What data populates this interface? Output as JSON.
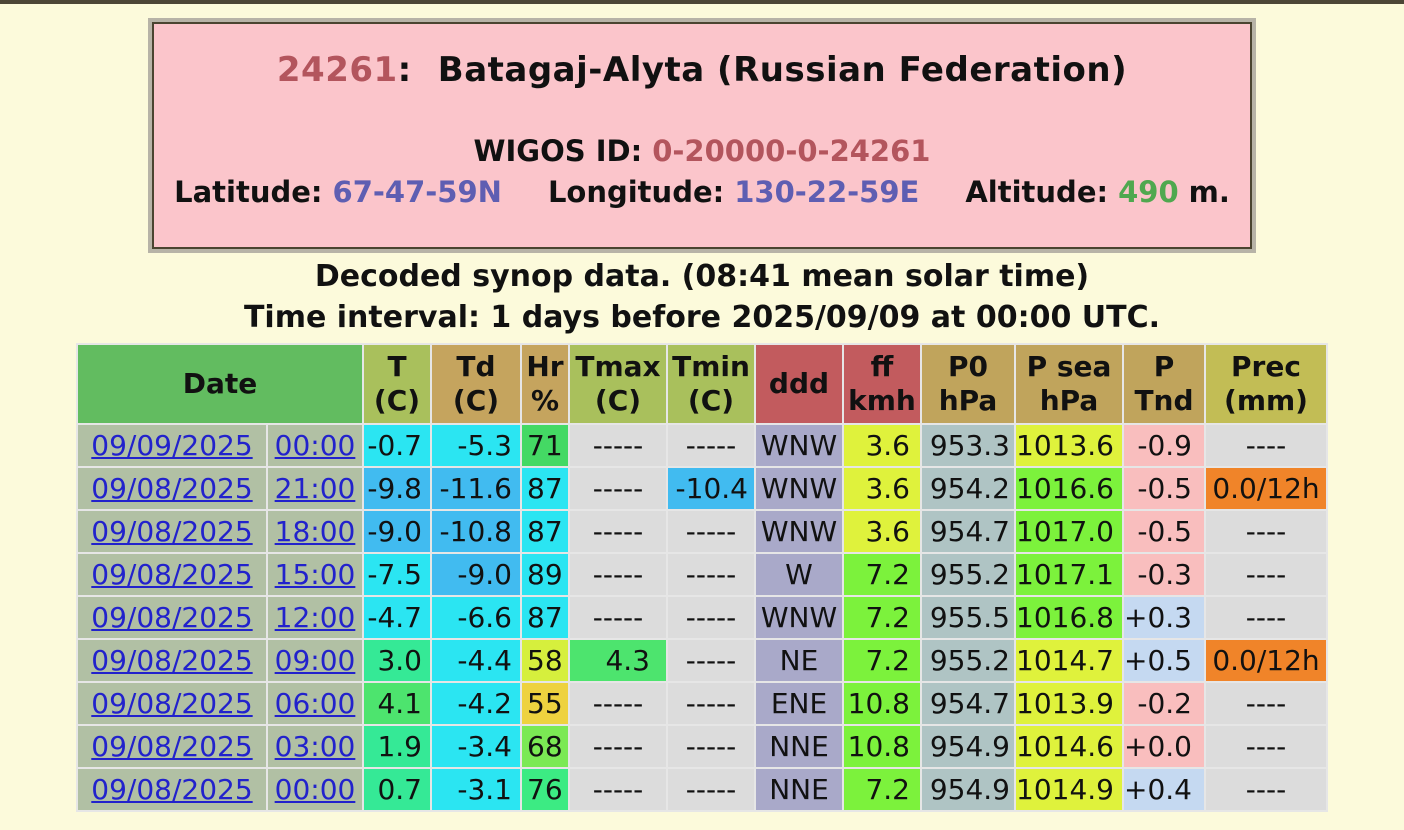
{
  "station": {
    "id": "24261",
    "id_suffix": ":",
    "name": "Batagaj-Alyta (Russian Federation)",
    "wigos_label": "WIGOS ID:",
    "wigos_id": "0-20000-0-24261",
    "latitude_label": "Latitude:",
    "latitude": "67-47-59N",
    "longitude_label": "Longitude:",
    "longitude": "130-22-59E",
    "altitude_label": "Altitude:",
    "altitude": "490",
    "altitude_unit": "m."
  },
  "subtitle": {
    "line1": "Decoded synop data. (08:41 mean solar time)",
    "line2": "Time interval: 1 days before 2025/09/09 at 00:00 UTC."
  },
  "colors": {
    "page_bg": "#FCFADB",
    "top_edge": "#4C4636",
    "station_box_bg": "#FBC5CB",
    "link_blue": "#2222CC",
    "date_cell_bg": "#B1C0A4"
  },
  "table": {
    "headers": [
      {
        "id": "date",
        "line1": "Date",
        "line2": "",
        "bg": "#62BC60",
        "colspan": 2
      },
      {
        "id": "t",
        "line1": "T",
        "line2": "(C)",
        "bg": "#A9C05C"
      },
      {
        "id": "td",
        "line1": "Td",
        "line2": "(C)",
        "bg": "#C5A45E"
      },
      {
        "id": "hr",
        "line1": "Hr",
        "line2": "%",
        "bg": "#C5A45E"
      },
      {
        "id": "tmax",
        "line1": "Tmax",
        "line2": "(C)",
        "bg": "#A9C05C"
      },
      {
        "id": "tmin",
        "line1": "Tmin",
        "line2": "(C)",
        "bg": "#A9C05C"
      },
      {
        "id": "ddd",
        "line1": "ddd",
        "line2": "",
        "bg": "#C25B5E"
      },
      {
        "id": "ff",
        "line1": "ff",
        "line2": "kmh",
        "bg": "#C25B5E"
      },
      {
        "id": "p0",
        "line1": "P0",
        "line2": "hPa",
        "bg": "#C0A45C"
      },
      {
        "id": "psea",
        "line1": "P sea",
        "line2": "hPa",
        "bg": "#C0A45C"
      },
      {
        "id": "ptnd",
        "line1": "P",
        "line2": "Tnd",
        "bg": "#C0A45C"
      },
      {
        "id": "prec",
        "line1": "Prec",
        "line2": "(mm)",
        "bg": "#C2BD55"
      }
    ],
    "columns": [
      {
        "key": "date",
        "link": true
      },
      {
        "key": "time",
        "link": true
      },
      {
        "key": "t"
      },
      {
        "key": "td"
      },
      {
        "key": "hr"
      },
      {
        "key": "tmax"
      },
      {
        "key": "tmin"
      },
      {
        "key": "ddd"
      },
      {
        "key": "ff"
      },
      {
        "key": "p0"
      },
      {
        "key": "psea"
      },
      {
        "key": "ptnd"
      },
      {
        "key": "prec"
      }
    ],
    "rows": [
      {
        "cells": [
          {
            "t": "09/09/2025",
            "bg": "#B1C0A4"
          },
          {
            "t": "00:00",
            "bg": "#B1C0A4"
          },
          {
            "t": "-0.7",
            "bg": "#2BE5F2"
          },
          {
            "t": "-5.3",
            "bg": "#2BE5F2"
          },
          {
            "t": "71",
            "bg": "#44D964"
          },
          {
            "t": "-----",
            "bg": "#DCDCDC",
            "dash": true
          },
          {
            "t": "-----",
            "bg": "#DCDCDC",
            "dash": true
          },
          {
            "t": "WNW",
            "bg": "#A9A9C9"
          },
          {
            "t": "3.6",
            "bg": "#DFF23C"
          },
          {
            "t": "953.3",
            "bg": "#AFC4C4"
          },
          {
            "t": "1013.6",
            "bg": "#DFF23C"
          },
          {
            "t": "-0.9",
            "bg": "#F9BEBE"
          },
          {
            "t": "----",
            "bg": "#DCDCDC",
            "dash": true
          }
        ]
      },
      {
        "cells": [
          {
            "t": "09/08/2025",
            "bg": "#B1C0A4"
          },
          {
            "t": "21:00",
            "bg": "#B1C0A4"
          },
          {
            "t": "-9.8",
            "bg": "#41BBF0"
          },
          {
            "t": "-11.6",
            "bg": "#41BBF0"
          },
          {
            "t": "87",
            "bg": "#2BE5F2"
          },
          {
            "t": "-----",
            "bg": "#DCDCDC",
            "dash": true
          },
          {
            "t": "-10.4",
            "bg": "#41BBF0"
          },
          {
            "t": "WNW",
            "bg": "#A9A9C9"
          },
          {
            "t": "3.6",
            "bg": "#DFF23C"
          },
          {
            "t": "954.2",
            "bg": "#AFC4C4"
          },
          {
            "t": "1016.6",
            "bg": "#7CF23C"
          },
          {
            "t": "-0.5",
            "bg": "#F9BEBE"
          },
          {
            "t": "0.0/12h",
            "bg": "#F08429"
          }
        ]
      },
      {
        "cells": [
          {
            "t": "09/08/2025",
            "bg": "#B1C0A4"
          },
          {
            "t": "18:00",
            "bg": "#B1C0A4"
          },
          {
            "t": "-9.0",
            "bg": "#41BBF0"
          },
          {
            "t": "-10.8",
            "bg": "#41BBF0"
          },
          {
            "t": "87",
            "bg": "#2BE5F2"
          },
          {
            "t": "-----",
            "bg": "#DCDCDC",
            "dash": true
          },
          {
            "t": "-----",
            "bg": "#DCDCDC",
            "dash": true
          },
          {
            "t": "WNW",
            "bg": "#A9A9C9"
          },
          {
            "t": "3.6",
            "bg": "#DFF23C"
          },
          {
            "t": "954.7",
            "bg": "#AFC4C4"
          },
          {
            "t": "1017.0",
            "bg": "#7CF23C"
          },
          {
            "t": "-0.5",
            "bg": "#F9BEBE"
          },
          {
            "t": "----",
            "bg": "#DCDCDC",
            "dash": true
          }
        ]
      },
      {
        "cells": [
          {
            "t": "09/08/2025",
            "bg": "#B1C0A4"
          },
          {
            "t": "15:00",
            "bg": "#B1C0A4"
          },
          {
            "t": "-7.5",
            "bg": "#2BE5F2"
          },
          {
            "t": "-9.0",
            "bg": "#41BBF0"
          },
          {
            "t": "89",
            "bg": "#2BE5F2"
          },
          {
            "t": "-----",
            "bg": "#DCDCDC",
            "dash": true
          },
          {
            "t": "-----",
            "bg": "#DCDCDC",
            "dash": true
          },
          {
            "t": "W",
            "bg": "#A9A9C9"
          },
          {
            "t": "7.2",
            "bg": "#7CF23C"
          },
          {
            "t": "955.2",
            "bg": "#AFC4C4"
          },
          {
            "t": "1017.1",
            "bg": "#7CF23C"
          },
          {
            "t": "-0.3",
            "bg": "#F9BEBE"
          },
          {
            "t": "----",
            "bg": "#DCDCDC",
            "dash": true
          }
        ]
      },
      {
        "cells": [
          {
            "t": "09/08/2025",
            "bg": "#B1C0A4"
          },
          {
            "t": "12:00",
            "bg": "#B1C0A4"
          },
          {
            "t": "-4.7",
            "bg": "#2BE5F2"
          },
          {
            "t": "-6.6",
            "bg": "#2BE5F2"
          },
          {
            "t": "87",
            "bg": "#2BE5F2"
          },
          {
            "t": "-----",
            "bg": "#DCDCDC",
            "dash": true
          },
          {
            "t": "-----",
            "bg": "#DCDCDC",
            "dash": true
          },
          {
            "t": "WNW",
            "bg": "#A9A9C9"
          },
          {
            "t": "7.2",
            "bg": "#7CF23C"
          },
          {
            "t": "955.5",
            "bg": "#AFC4C4"
          },
          {
            "t": "1016.8",
            "bg": "#7CF23C"
          },
          {
            "t": "+0.3",
            "bg": "#C5D9F1"
          },
          {
            "t": "----",
            "bg": "#DCDCDC",
            "dash": true
          }
        ]
      },
      {
        "cells": [
          {
            "t": "09/08/2025",
            "bg": "#B1C0A4"
          },
          {
            "t": "09:00",
            "bg": "#B1C0A4"
          },
          {
            "t": "3.0",
            "bg": "#35E996"
          },
          {
            "t": "-4.4",
            "bg": "#2BE5F2"
          },
          {
            "t": "58",
            "bg": "#D6EF3D"
          },
          {
            "t": "4.3",
            "bg": "#4DE46E"
          },
          {
            "t": "-----",
            "bg": "#DCDCDC",
            "dash": true
          },
          {
            "t": "NE",
            "bg": "#A9A9C9"
          },
          {
            "t": "7.2",
            "bg": "#7CF23C"
          },
          {
            "t": "955.2",
            "bg": "#AFC4C4"
          },
          {
            "t": "1014.7",
            "bg": "#DFF23C"
          },
          {
            "t": "+0.5",
            "bg": "#C5D9F1"
          },
          {
            "t": "0.0/12h",
            "bg": "#F08429"
          }
        ]
      },
      {
        "cells": [
          {
            "t": "09/08/2025",
            "bg": "#B1C0A4"
          },
          {
            "t": "06:00",
            "bg": "#B1C0A4"
          },
          {
            "t": "4.1",
            "bg": "#4DE46E"
          },
          {
            "t": "-4.2",
            "bg": "#2BE5F2"
          },
          {
            "t": "55",
            "bg": "#EED23F"
          },
          {
            "t": "-----",
            "bg": "#DCDCDC",
            "dash": true
          },
          {
            "t": "-----",
            "bg": "#DCDCDC",
            "dash": true
          },
          {
            "t": "ENE",
            "bg": "#A9A9C9"
          },
          {
            "t": "10.8",
            "bg": "#7CF23C"
          },
          {
            "t": "954.7",
            "bg": "#AFC4C4"
          },
          {
            "t": "1013.9",
            "bg": "#DFF23C"
          },
          {
            "t": "-0.2",
            "bg": "#F9BEBE"
          },
          {
            "t": "----",
            "bg": "#DCDCDC",
            "dash": true
          }
        ]
      },
      {
        "cells": [
          {
            "t": "09/08/2025",
            "bg": "#B1C0A4"
          },
          {
            "t": "03:00",
            "bg": "#B1C0A4"
          },
          {
            "t": "1.9",
            "bg": "#35E996"
          },
          {
            "t": "-3.4",
            "bg": "#2BE5F2"
          },
          {
            "t": "68",
            "bg": "#7BE954"
          },
          {
            "t": "-----",
            "bg": "#DCDCDC",
            "dash": true
          },
          {
            "t": "-----",
            "bg": "#DCDCDC",
            "dash": true
          },
          {
            "t": "NNE",
            "bg": "#A9A9C9"
          },
          {
            "t": "10.8",
            "bg": "#7CF23C"
          },
          {
            "t": "954.9",
            "bg": "#AFC4C4"
          },
          {
            "t": "1014.6",
            "bg": "#DFF23C"
          },
          {
            "t": "+0.0",
            "bg": "#F9BEBE"
          },
          {
            "t": "----",
            "bg": "#DCDCDC",
            "dash": true
          }
        ]
      },
      {
        "cells": [
          {
            "t": "09/08/2025",
            "bg": "#B1C0A4"
          },
          {
            "t": "00:00",
            "bg": "#B1C0A4"
          },
          {
            "t": "0.7",
            "bg": "#35E996"
          },
          {
            "t": "-3.1",
            "bg": "#2BE5F2"
          },
          {
            "t": "76",
            "bg": "#3CEB83"
          },
          {
            "t": "-----",
            "bg": "#DCDCDC",
            "dash": true
          },
          {
            "t": "-----",
            "bg": "#DCDCDC",
            "dash": true
          },
          {
            "t": "NNE",
            "bg": "#A9A9C9"
          },
          {
            "t": "7.2",
            "bg": "#7CF23C"
          },
          {
            "t": "954.9",
            "bg": "#AFC4C4"
          },
          {
            "t": "1014.9",
            "bg": "#DFF23C"
          },
          {
            "t": "+0.4",
            "bg": "#C5D9F1"
          },
          {
            "t": "----",
            "bg": "#DCDCDC",
            "dash": true
          }
        ]
      }
    ]
  }
}
